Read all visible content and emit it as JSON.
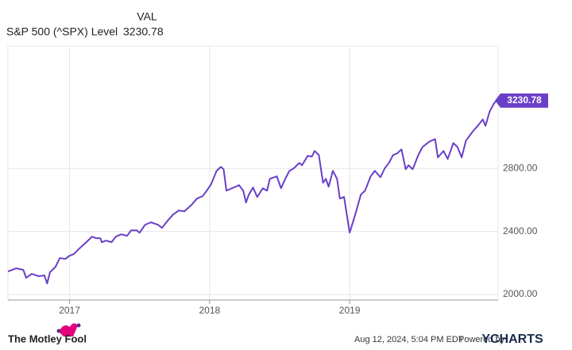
{
  "chart_data": {
    "type": "line",
    "value_header": "VAL",
    "last_value": 3230.78,
    "x": [
      2016.56,
      2016.62,
      2016.67,
      2016.69,
      2016.73,
      2016.78,
      2016.82,
      2016.84,
      2016.86,
      2016.9,
      2016.93,
      2016.97,
      2017.0,
      2017.03,
      2017.07,
      2017.12,
      2017.16,
      2017.19,
      2017.22,
      2017.23,
      2017.26,
      2017.3,
      2017.33,
      2017.37,
      2017.41,
      2017.44,
      2017.48,
      2017.5,
      2017.54,
      2017.58,
      2017.63,
      2017.66,
      2017.7,
      2017.74,
      2017.78,
      2017.82,
      2017.87,
      2017.91,
      2017.95,
      2017.98,
      2018.01,
      2018.05,
      2018.08,
      2018.1,
      2018.12,
      2018.16,
      2018.21,
      2018.24,
      2018.26,
      2018.28,
      2018.31,
      2018.34,
      2018.38,
      2018.41,
      2018.43,
      2018.48,
      2018.51,
      2018.54,
      2018.57,
      2018.6,
      2018.64,
      2018.66,
      2018.7,
      2018.73,
      2018.75,
      2018.78,
      2018.81,
      2018.83,
      2018.85,
      2018.88,
      2018.91,
      2018.93,
      2018.96,
      2019.0,
      2019.04,
      2019.08,
      2019.11,
      2019.15,
      2019.18,
      2019.22,
      2019.25,
      2019.28,
      2019.31,
      2019.34,
      2019.37,
      2019.4,
      2019.42,
      2019.45,
      2019.49,
      2019.52,
      2019.57,
      2019.61,
      2019.63,
      2019.67,
      2019.7,
      2019.74,
      2019.77,
      2019.8,
      2019.83,
      2019.88,
      2019.92,
      2019.95,
      2019.97,
      2020.0,
      2020.03,
      2020.05
    ],
    "series": [
      {
        "name": "S&P 500 (^SPX) Level",
        "color": "#6a3fc8",
        "values": [
          2146,
          2166,
          2156,
          2106,
          2131,
          2116,
          2121,
          2070,
          2141,
          2176,
          2231,
          2226,
          2246,
          2256,
          2292,
          2332,
          2367,
          2357,
          2357,
          2332,
          2342,
          2332,
          2367,
          2382,
          2372,
          2407,
          2407,
          2392,
          2443,
          2458,
          2443,
          2423,
          2468,
          2508,
          2533,
          2528,
          2568,
          2609,
          2624,
          2659,
          2699,
          2785,
          2810,
          2795,
          2659,
          2674,
          2694,
          2659,
          2584,
          2634,
          2679,
          2619,
          2674,
          2659,
          2734,
          2750,
          2674,
          2734,
          2785,
          2800,
          2835,
          2820,
          2880,
          2875,
          2911,
          2885,
          2709,
          2734,
          2684,
          2785,
          2734,
          2609,
          2619,
          2392,
          2508,
          2634,
          2659,
          2750,
          2785,
          2744,
          2800,
          2835,
          2885,
          2896,
          2921,
          2795,
          2820,
          2795,
          2885,
          2936,
          2971,
          2986,
          2870,
          2911,
          2860,
          2961,
          2936,
          2870,
          2976,
          3036,
          3076,
          3111,
          3071,
          3162,
          3212,
          3230.78
        ]
      }
    ],
    "xlim": [
      2016.56,
      2020.06
    ],
    "xticks": [
      2017,
      2018,
      2019
    ],
    "ylim": [
      1965,
      3577
    ],
    "yticks": [
      {
        "value": 2000,
        "label": "2000.00"
      },
      {
        "value": 2400,
        "label": "2400.00"
      },
      {
        "value": 2800,
        "label": "2800.00"
      }
    ],
    "grid": true
  },
  "footer": {
    "logo": "The Motley Fool",
    "timestamp": "Aug 12, 2024, 5:04 PM EDT",
    "powered_by": "Powered by",
    "brand": "YCHARTS"
  }
}
